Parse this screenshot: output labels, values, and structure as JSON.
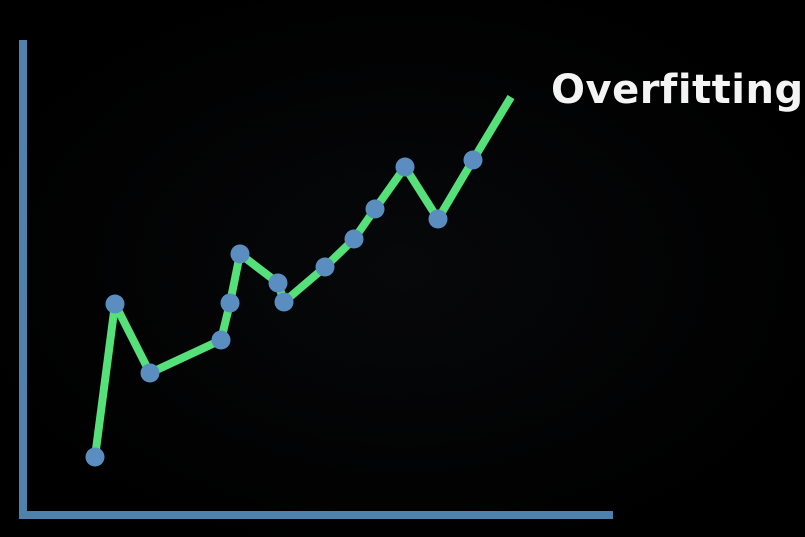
{
  "diagram": {
    "title": "Overfitting",
    "colors": {
      "background": "#000000",
      "axis": "#4f81ad",
      "curve": "#55e07a",
      "point": "#5b8ec0",
      "title_text": "#f4f4f4"
    },
    "points": [
      {
        "x": 1,
        "y": 1
      },
      {
        "x": 2,
        "y": 6
      },
      {
        "x": 3,
        "y": 3
      },
      {
        "x": 4,
        "y": 4
      },
      {
        "x": 5,
        "y": 5
      },
      {
        "x": 6,
        "y": 7
      },
      {
        "x": 7,
        "y": 6
      },
      {
        "x": 8,
        "y": 5
      },
      {
        "x": 9,
        "y": 6
      },
      {
        "x": 10,
        "y": 7
      },
      {
        "x": 11,
        "y": 8
      },
      {
        "x": 12,
        "y": 9
      },
      {
        "x": 13,
        "y": 7
      },
      {
        "x": 14,
        "y": 9
      }
    ],
    "curve_end": {
      "x": 15,
      "y": 11
    }
  }
}
